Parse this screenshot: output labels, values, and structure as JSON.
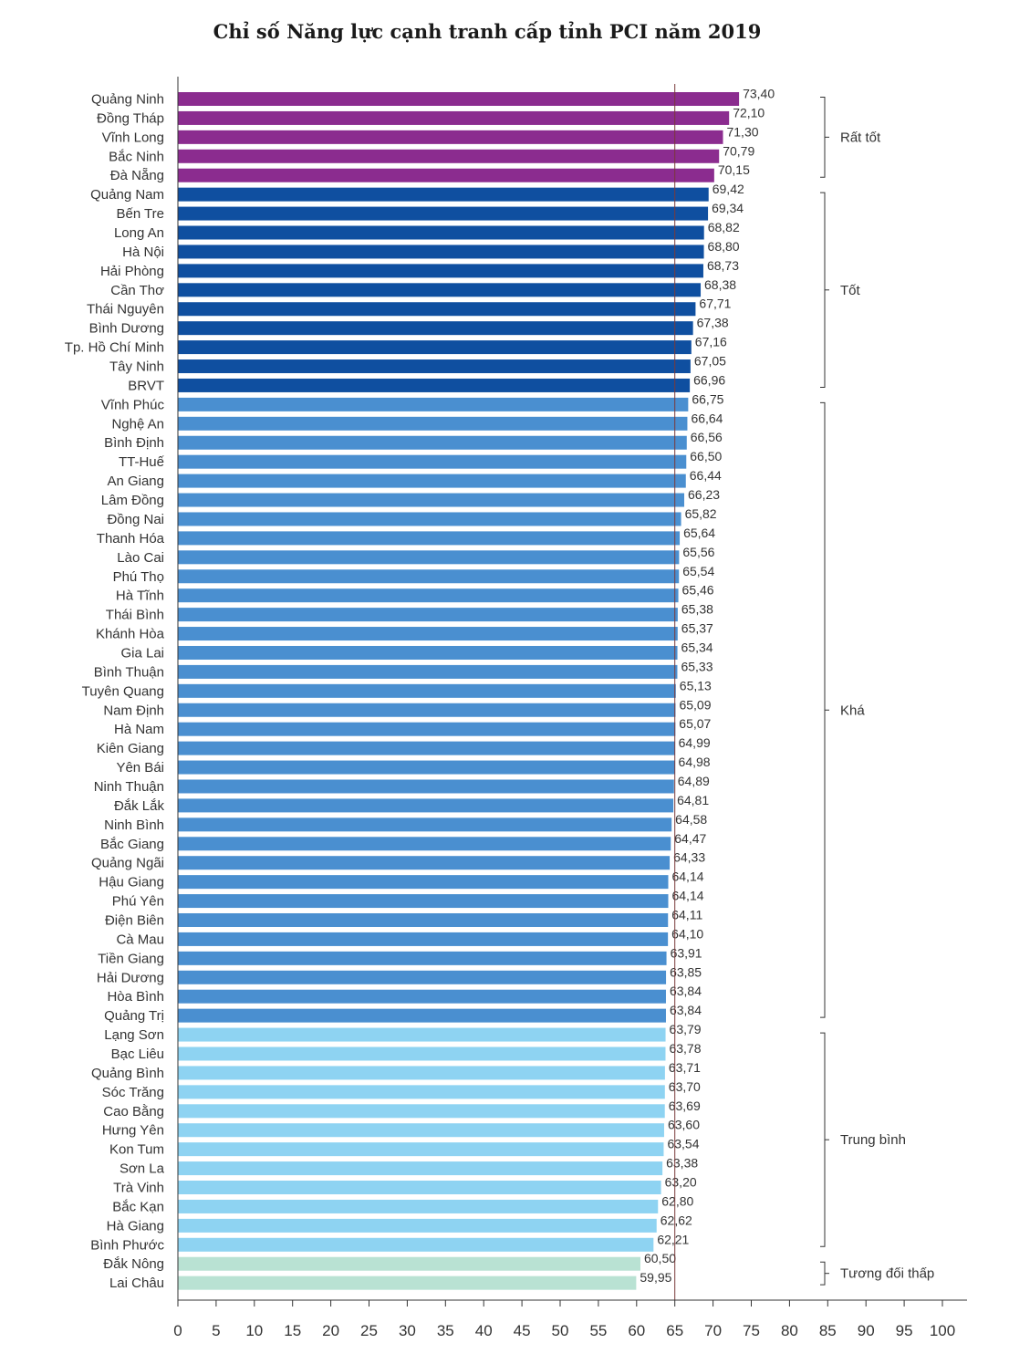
{
  "chart_data": {
    "type": "bar",
    "orientation": "horizontal",
    "title": "Chỉ số Năng lực cạnh tranh cấp tỉnh PCI năm 2019",
    "xlabel": "",
    "ylabel": "",
    "xlim": [
      0,
      100
    ],
    "x_ticks": [
      0,
      5,
      10,
      15,
      20,
      25,
      30,
      35,
      40,
      45,
      50,
      55,
      60,
      65,
      70,
      75,
      80,
      85,
      90,
      95,
      100
    ],
    "reference_line": 65,
    "groups": [
      {
        "name": "Rất tốt",
        "color": "#8b2c8f",
        "start": 0,
        "end": 4
      },
      {
        "name": "Tốt",
        "color": "#0f4fa0",
        "start": 5,
        "end": 15
      },
      {
        "name": "Khá",
        "color": "#4a8fd0",
        "start": 16,
        "end": 48
      },
      {
        "name": "Trung bình",
        "color": "#8ed3f2",
        "start": 49,
        "end": 60
      },
      {
        "name": "Tương đối thấp",
        "color": "#b9e2d3",
        "start": 61,
        "end": 62
      }
    ],
    "categories": [
      "Quảng Ninh",
      "Đồng Tháp",
      "Vĩnh Long",
      "Bắc Ninh",
      "Đà Nẵng",
      "Quảng Nam",
      "Bến Tre",
      "Long An",
      "Hà Nội",
      "Hải Phòng",
      "Cần Thơ",
      "Thái Nguyên",
      "Bình Dương",
      "Tp. Hồ Chí Minh",
      "Tây Ninh",
      "BRVT",
      "Vĩnh Phúc",
      "Nghệ An",
      "Bình Định",
      "TT-Huế",
      "An Giang",
      "Lâm Đồng",
      "Đồng Nai",
      "Thanh Hóa",
      "Lào Cai",
      "Phú Thọ",
      "Hà Tĩnh",
      "Thái Bình",
      "Khánh Hòa",
      "Gia Lai",
      "Bình Thuận",
      "Tuyên Quang",
      "Nam Định",
      "Hà Nam",
      "Kiên Giang",
      "Yên Bái",
      "Ninh Thuận",
      "Đắk Lắk",
      "Ninh Bình",
      "Bắc Giang",
      "Quảng Ngãi",
      "Hậu Giang",
      "Phú Yên",
      "Điện Biên",
      "Cà Mau",
      "Tiền Giang",
      "Hải Dương",
      "Hòa Bình",
      "Quảng Trị",
      "Lạng Sơn",
      "Bạc Liêu",
      "Quảng Bình",
      "Sóc Trăng",
      "Cao Bằng",
      "Hưng Yên",
      "Kon Tum",
      "Sơn La",
      "Trà Vinh",
      "Bắc Kạn",
      "Hà Giang",
      "Bình Phước",
      "Đắk Nông",
      "Lai Châu"
    ],
    "values": [
      73.4,
      72.1,
      71.3,
      70.79,
      70.15,
      69.42,
      69.34,
      68.82,
      68.8,
      68.73,
      68.38,
      67.71,
      67.38,
      67.16,
      67.05,
      66.96,
      66.75,
      66.64,
      66.56,
      66.5,
      66.44,
      66.23,
      65.82,
      65.64,
      65.56,
      65.54,
      65.46,
      65.38,
      65.37,
      65.34,
      65.33,
      65.13,
      65.09,
      65.07,
      64.99,
      64.98,
      64.89,
      64.81,
      64.58,
      64.47,
      64.33,
      64.14,
      64.14,
      64.11,
      64.1,
      63.91,
      63.85,
      63.84,
      63.84,
      63.79,
      63.78,
      63.71,
      63.7,
      63.69,
      63.6,
      63.54,
      63.38,
      63.2,
      62.8,
      62.62,
      62.21,
      60.5,
      59.95
    ],
    "value_labels": [
      "73,40",
      "72,10",
      "71,30",
      "70,79",
      "70,15",
      "69,42",
      "69,34",
      "68,82",
      "68,80",
      "68,73",
      "68,38",
      "67,71",
      "67,38",
      "67,16",
      "67,05",
      "66,96",
      "66,75",
      "66,64",
      "66,56",
      "66,50",
      "66,44",
      "66,23",
      "65,82",
      "65,64",
      "65,56",
      "65,54",
      "65,46",
      "65,38",
      "65,37",
      "65,34",
      "65,33",
      "65,13",
      "65,09",
      "65,07",
      "64,99",
      "64,98",
      "64,89",
      "64,81",
      "64,58",
      "64,47",
      "64,33",
      "64,14",
      "64,14",
      "64,11",
      "64,10",
      "63,91",
      "63,85",
      "63,84",
      "63,84",
      "63,79",
      "63,78",
      "63,71",
      "63,70",
      "63,69",
      "63,60",
      "63,54",
      "63,38",
      "63,20",
      "62,80",
      "62,62",
      "62,21",
      "60,50",
      "59,95"
    ]
  }
}
